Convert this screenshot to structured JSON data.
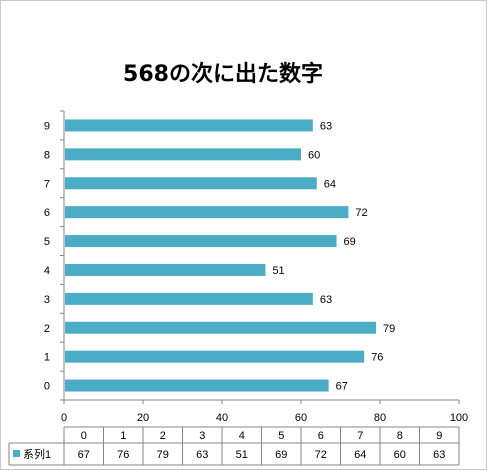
{
  "chart_data": {
    "type": "bar",
    "orientation": "horizontal",
    "title": "568の次に出た数字",
    "categories": [
      "0",
      "1",
      "2",
      "3",
      "4",
      "5",
      "6",
      "7",
      "8",
      "9"
    ],
    "series": [
      {
        "name": "系列1",
        "values": [
          67,
          76,
          79,
          63,
          51,
          69,
          72,
          64,
          60,
          63
        ],
        "color": "#4bacc6"
      }
    ],
    "xlim": [
      0,
      100
    ],
    "x_ticks": [
      0,
      20,
      40,
      60,
      80,
      100
    ],
    "grid": false,
    "legend": "data-table-bottom"
  }
}
